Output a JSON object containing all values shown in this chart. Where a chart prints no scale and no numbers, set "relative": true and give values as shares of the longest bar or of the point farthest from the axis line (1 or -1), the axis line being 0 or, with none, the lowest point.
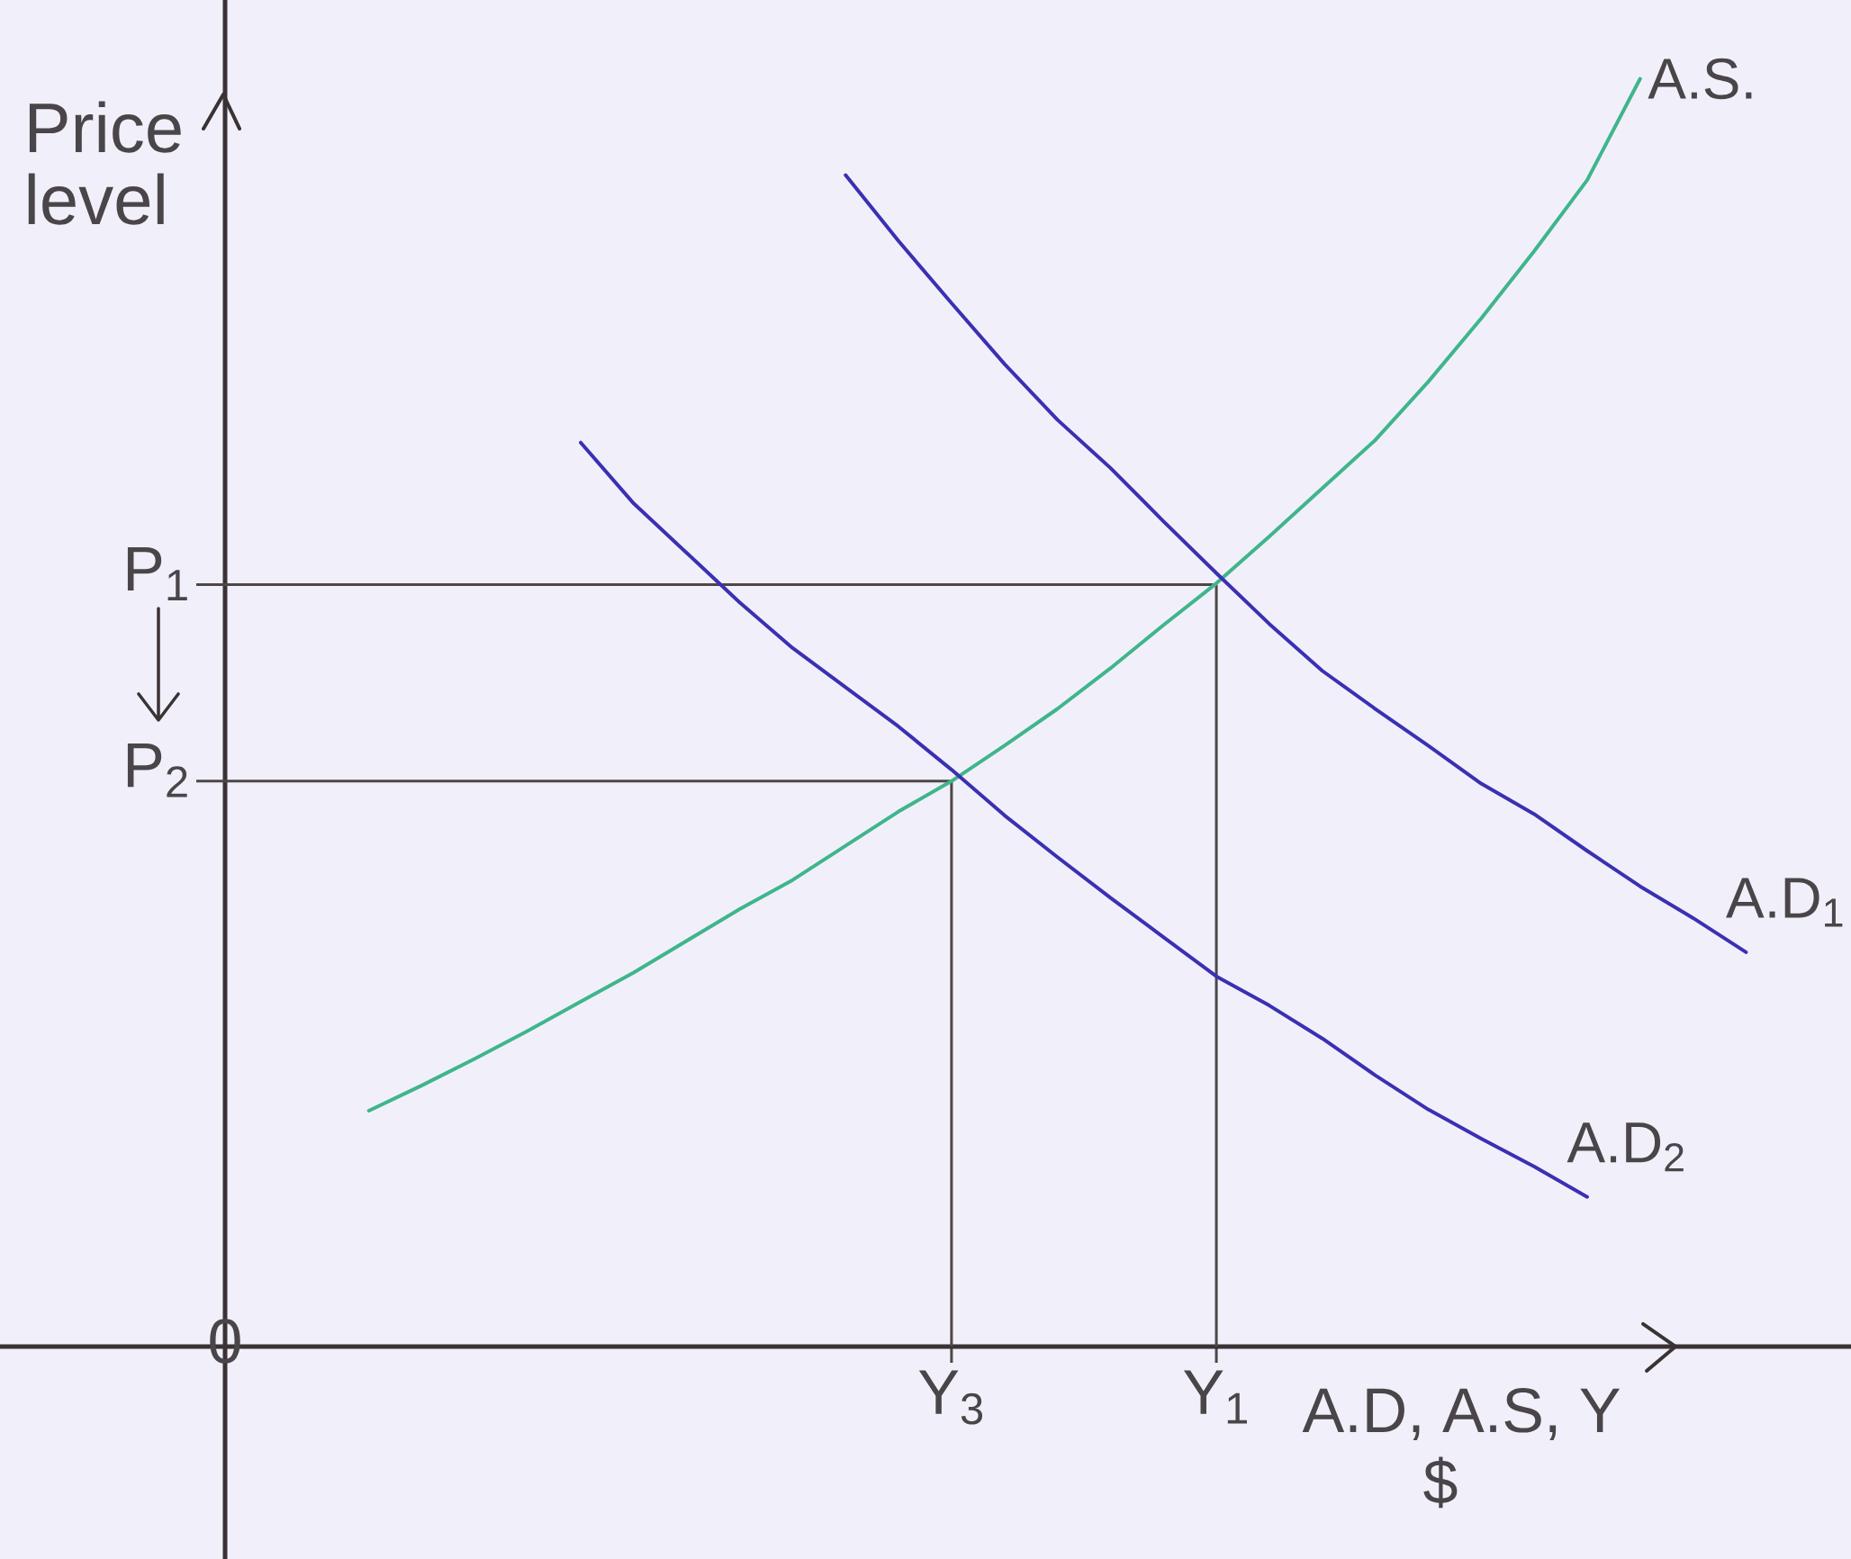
{
  "chart_data": {
    "type": "line",
    "relative": true,
    "xlabel": "A.D, A.S, Y",
    "ylabel": "Price level",
    "categories": [
      null,
      null,
      null,
      null,
      null,
      null,
      null,
      null,
      null,
      null,
      null,
      "Y$_{3}$",
      null,
      null,
      null,
      null,
      "Y$_{1}$",
      null,
      null,
      null,
      null,
      null,
      null,
      null,
      null,
      null,
      null
    ],
    "series": [
      {
        "name": "A.S.",
        "color": "#3fb58c",
        "values": [
          0.186,
          0.206,
          0.227,
          0.249,
          0.272,
          0.295,
          0.32,
          0.345,
          0.368,
          0.395,
          0.422,
          0.446,
          0.474,
          0.503,
          0.535,
          0.569,
          0.602,
          0.639,
          0.677,
          0.715,
          0.761,
          0.811,
          0.864,
          0.92,
          1.0,
          null,
          null
        ]
      },
      {
        "name": "A.D$_{1}$",
        "color": "#3b30b2",
        "values": [
          null,
          null,
          null,
          null,
          null,
          null,
          null,
          null,
          null,
          0.924,
          0.872,
          0.823,
          0.775,
          0.731,
          0.693,
          0.651,
          0.61,
          0.57,
          0.533,
          0.503,
          0.474,
          0.444,
          0.42,
          0.391,
          0.363,
          0.338,
          0.311
        ]
      },
      {
        "name": "A.D$_{2}$",
        "color": "#3b30b2",
        "values": [
          null,
          null,
          null,
          null,
          0.713,
          0.665,
          0.626,
          0.587,
          0.551,
          0.52,
          0.489,
          0.455,
          0.419,
          0.386,
          0.354,
          0.323,
          0.292,
          0.269,
          0.243,
          0.214,
          0.187,
          0.164,
          0.142,
          0.118,
          null,
          null,
          null
        ]
      }
    ],
    "ref_lines": [
      {
        "axis": "y",
        "value": 0.601,
        "label": "P$_{1}$"
      },
      {
        "axis": "x",
        "value": "Y$_{1}$"
      },
      {
        "axis": "y",
        "value": 0.446,
        "label": "P$_{2}$"
      },
      {
        "axis": "x",
        "value": "Y$_{3}$"
      }
    ],
    "annotations": [
      "0",
      "$"
    ]
  }
}
